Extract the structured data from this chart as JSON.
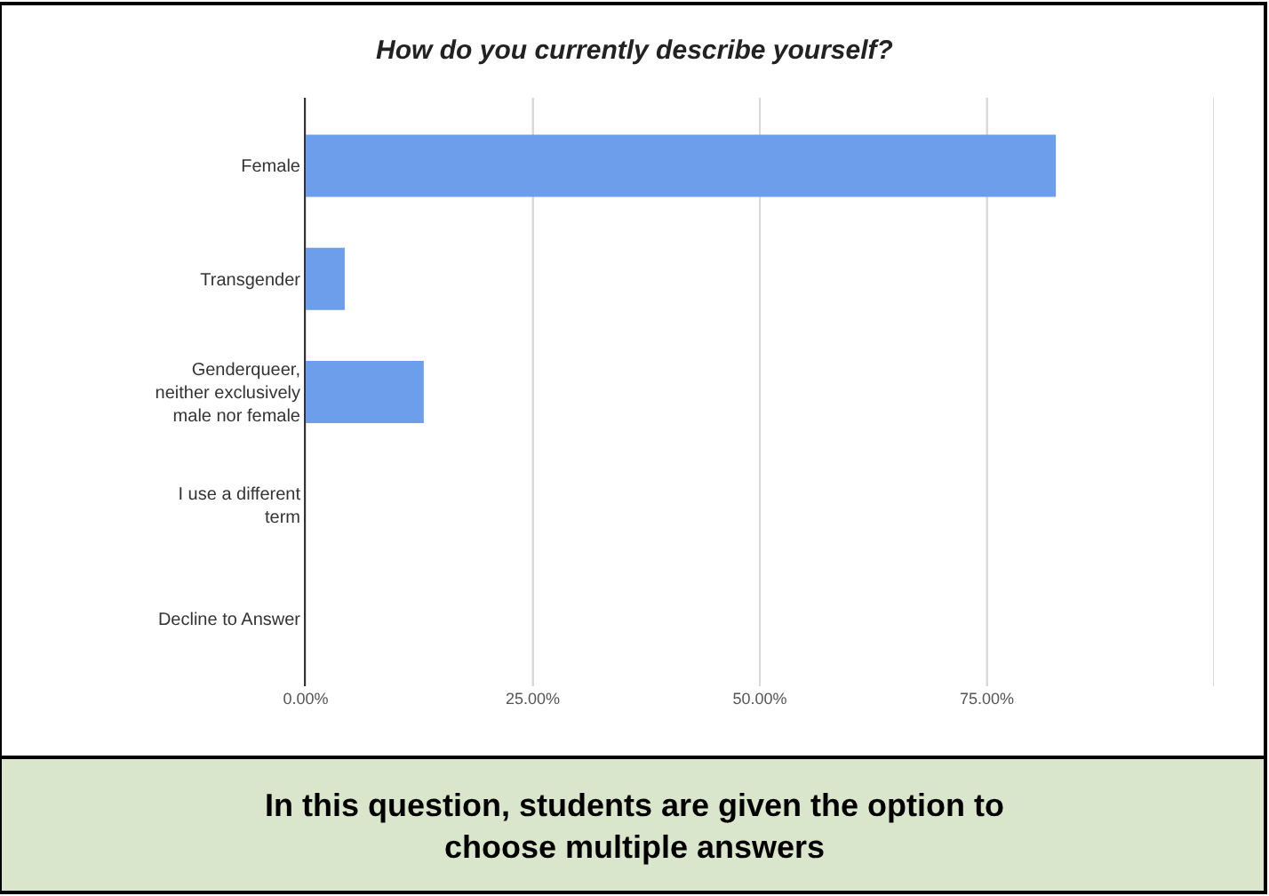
{
  "chart_data": {
    "type": "bar",
    "orientation": "horizontal",
    "title": "How do you currently describe yourself?",
    "categories": [
      "Female",
      "Transgender",
      "Genderqueer, neither exclusively male nor female",
      "I use a different term",
      "Decline to Answer"
    ],
    "values": [
      82.6,
      4.3,
      13.0,
      0,
      0
    ],
    "color": "#6d9eeb",
    "xlim": [
      0,
      100
    ],
    "xticks": [
      {
        "value": 0,
        "label": "0.00%"
      },
      {
        "value": 25,
        "label": "25.00%"
      },
      {
        "value": 50,
        "label": "50.00%"
      },
      {
        "value": 75,
        "label": "75.00%"
      },
      {
        "value": 100,
        "label": null
      }
    ],
    "grid": "x",
    "legend": false,
    "annotations": [
      "In this question, students are given the option to choose multiple answers"
    ]
  }
}
